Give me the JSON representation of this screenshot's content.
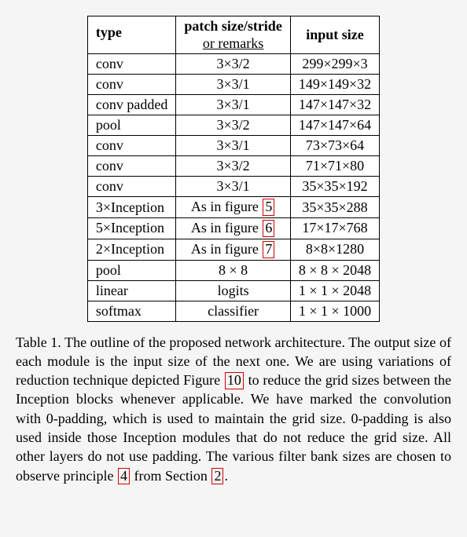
{
  "table": {
    "headers": {
      "type": "type",
      "patch_main": "patch size/stride",
      "patch_sub": "or remarks",
      "input": "input size"
    },
    "rows": [
      {
        "type": "conv",
        "patch": "3×3/2",
        "input": "299×299×3"
      },
      {
        "type": "conv",
        "patch": "3×3/1",
        "input": "149×149×32"
      },
      {
        "type": "conv padded",
        "patch": "3×3/1",
        "input": "147×147×32"
      },
      {
        "type": "pool",
        "patch": "3×3/2",
        "input": "147×147×64"
      },
      {
        "type": "conv",
        "patch": "3×3/1",
        "input": "73×73×64"
      },
      {
        "type": "conv",
        "patch": "3×3/2",
        "input": "71×71×80"
      },
      {
        "type": "conv",
        "patch": "3×3/1",
        "input": "35×35×192"
      },
      {
        "type": "3×Inception",
        "patch_prefix": "As in figure ",
        "patch_ref": "5",
        "input": "35×35×288"
      },
      {
        "type": "5×Inception",
        "patch_prefix": "As in figure ",
        "patch_ref": "6",
        "input": "17×17×768"
      },
      {
        "type": "2×Inception",
        "patch_prefix": "As in figure ",
        "patch_ref": "7",
        "input": "8×8×1280"
      },
      {
        "type": "pool",
        "patch": "8 × 8",
        "input": "8 × 8 × 2048"
      },
      {
        "type": "linear",
        "patch": "logits",
        "input": "1 × 1 × 2048"
      },
      {
        "type": "softmax",
        "patch": "classifier",
        "input": "1 × 1 × 1000"
      }
    ]
  },
  "caption": {
    "label": "Table 1.",
    "seg1": " The outline of the proposed network architecture. The output size of each module is the input size of the next one. We are using variations of reduction technique depicted Figure ",
    "ref1": "10",
    "seg2": " to reduce the grid sizes between the Inception blocks whenever applicable. We have marked the convolution with 0-padding, which is used to maintain the grid size. 0-padding is also used inside those Inception modules that do not reduce the grid size. All other layers do not use padding. The various filter bank sizes are chosen to observe principle ",
    "ref2": "4",
    "seg3": " from Section ",
    "ref3": "2",
    "seg4": "."
  },
  "colors": {
    "ref_border": "#d00000"
  }
}
